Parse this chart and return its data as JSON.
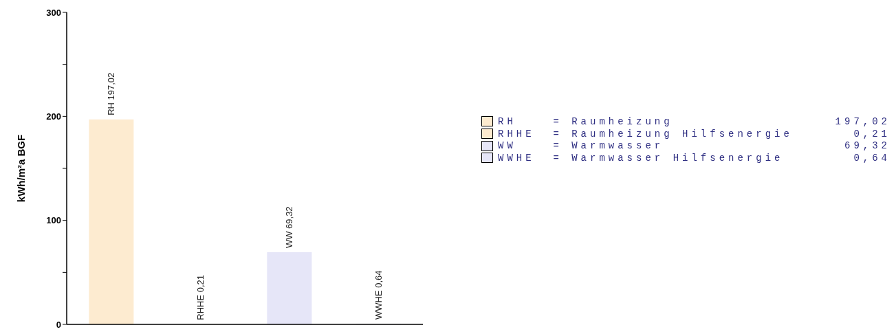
{
  "chart_data": {
    "type": "bar",
    "ylabel": "kWh/m²a BGF",
    "categories": [
      null,
      null,
      null,
      null
    ],
    "stacked": true,
    "series": [
      {
        "name": "RH    = Raumheizung",
        "color": "#fdebd0",
        "values": [
          197.02,
          null,
          null,
          null
        ],
        "value_labels": [
          "RH 197,02",
          null,
          null,
          null
        ]
      },
      {
        "name": "RHHE  = Raumheizung Hilfsenergie",
        "color": "#fdebd0",
        "values": [
          null,
          0.21,
          null,
          null
        ],
        "value_labels": [
          null,
          "RHHE 0,21",
          null,
          null
        ]
      },
      {
        "name": "WW    = Warmwasser",
        "color": "#e6e6f8",
        "values": [
          null,
          null,
          69.32,
          null
        ],
        "value_labels": [
          null,
          null,
          "WW 69,32",
          null
        ]
      },
      {
        "name": "WWHE  = Warmwasser Hilfsenergie",
        "color": "#e6e6f8",
        "values": [
          null,
          null,
          null,
          0.64
        ],
        "value_labels": [
          null,
          null,
          null,
          "WWHE 0,64"
        ]
      }
    ],
    "annotations": [
      "197,02",
      "0,21",
      "69,32",
      "0,64"
    ],
    "ylim": [
      0,
      300
    ],
    "yticks": [
      0,
      {
        "value": 50,
        "label": null
      },
      100,
      {
        "value": 150,
        "label": null
      },
      200,
      {
        "value": 250,
        "label": null
      },
      300
    ],
    "legend": "right",
    "tick_labels": "y"
  }
}
